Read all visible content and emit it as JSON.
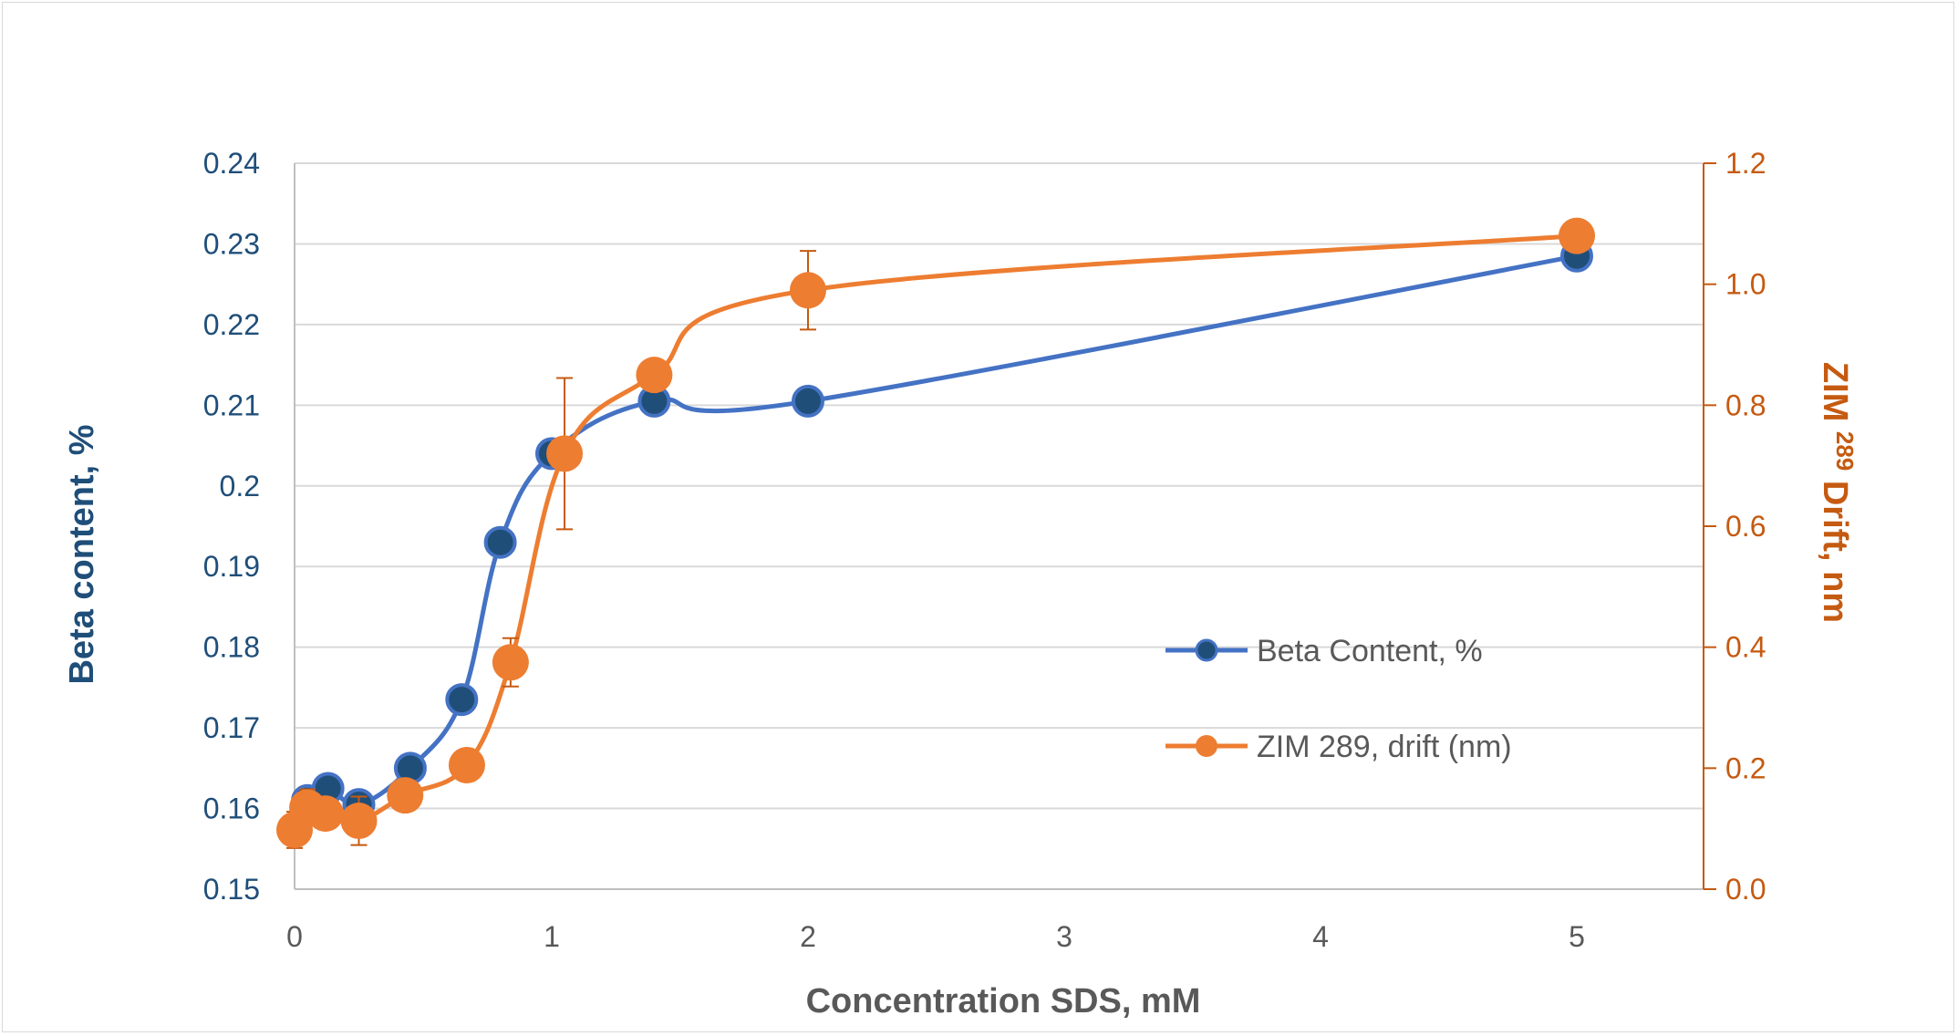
{
  "chart_data": {
    "type": "line",
    "title": "",
    "xlabel": "Concentration SDS, mM",
    "ylabel_left": "Beta content, %",
    "ylabel_right": "ZIM 289 Drift, nm",
    "ylabel_right_parts": {
      "prefix": "ZIM ",
      "superscript": "289",
      "suffix": " Drift, nm"
    },
    "x_axis": {
      "ticks": [
        "0",
        "1",
        "2",
        "3",
        "4",
        "5"
      ],
      "position_map_note": "",
      "tick_values": [
        0,
        1,
        2,
        3,
        4,
        5
      ]
    },
    "y_left": {
      "range": [
        0.15,
        0.24
      ],
      "ticks": [
        "0.15",
        "0.16",
        "0.17",
        "0.18",
        "0.19",
        "0.2",
        "0.21",
        "0.22",
        "0.23",
        "0.24"
      ]
    },
    "y_right": {
      "range": [
        0.0,
        1.2
      ],
      "ticks": [
        "0.0",
        "0.2",
        "0.4",
        "0.6",
        "0.8",
        "1.0",
        "1.2"
      ]
    },
    "grid": true,
    "legend_position": "center-right",
    "series": [
      {
        "name": "Beta Content, %",
        "axis": "left",
        "color": "#4472C4",
        "marker_fill": "#1F4E79",
        "points": [
          {
            "x": 0.05,
            "y": 0.161
          },
          {
            "x": 0.13,
            "y": 0.1625
          },
          {
            "x": 0.25,
            "y": 0.1605
          },
          {
            "x": 0.45,
            "y": 0.165
          },
          {
            "x": 0.65,
            "y": 0.1735
          },
          {
            "x": 0.8,
            "y": 0.193
          },
          {
            "x": 1.0,
            "y": 0.204
          },
          {
            "x": 1.4,
            "y": 0.2105
          },
          {
            "x": 2.0,
            "y": 0.2105
          },
          {
            "x": 5.0,
            "y": 0.2285
          }
        ]
      },
      {
        "name": "ZIM 289, drift (nm)",
        "axis": "right",
        "color": "#ED7D31",
        "marker_fill": "#ED7D31",
        "points": [
          {
            "x": 0.0,
            "y": 0.098,
            "err": 0.03
          },
          {
            "x": 0.05,
            "y": 0.135,
            "err": 0.03
          },
          {
            "x": 0.12,
            "y": 0.125,
            "err": 0.0
          },
          {
            "x": 0.25,
            "y": 0.113,
            "err": 0.04
          },
          {
            "x": 0.43,
            "y": 0.155,
            "err": 0.0
          },
          {
            "x": 0.67,
            "y": 0.205,
            "err": 0.0
          },
          {
            "x": 0.84,
            "y": 0.375,
            "err": 0.04
          },
          {
            "x": 1.05,
            "y": 0.72,
            "err": 0.125
          },
          {
            "x": 1.4,
            "y": 0.85,
            "err": 0.0
          },
          {
            "x": 2.0,
            "y": 0.99,
            "err": 0.065
          },
          {
            "x": 5.0,
            "y": 1.08,
            "err": 0.0
          }
        ]
      }
    ]
  }
}
